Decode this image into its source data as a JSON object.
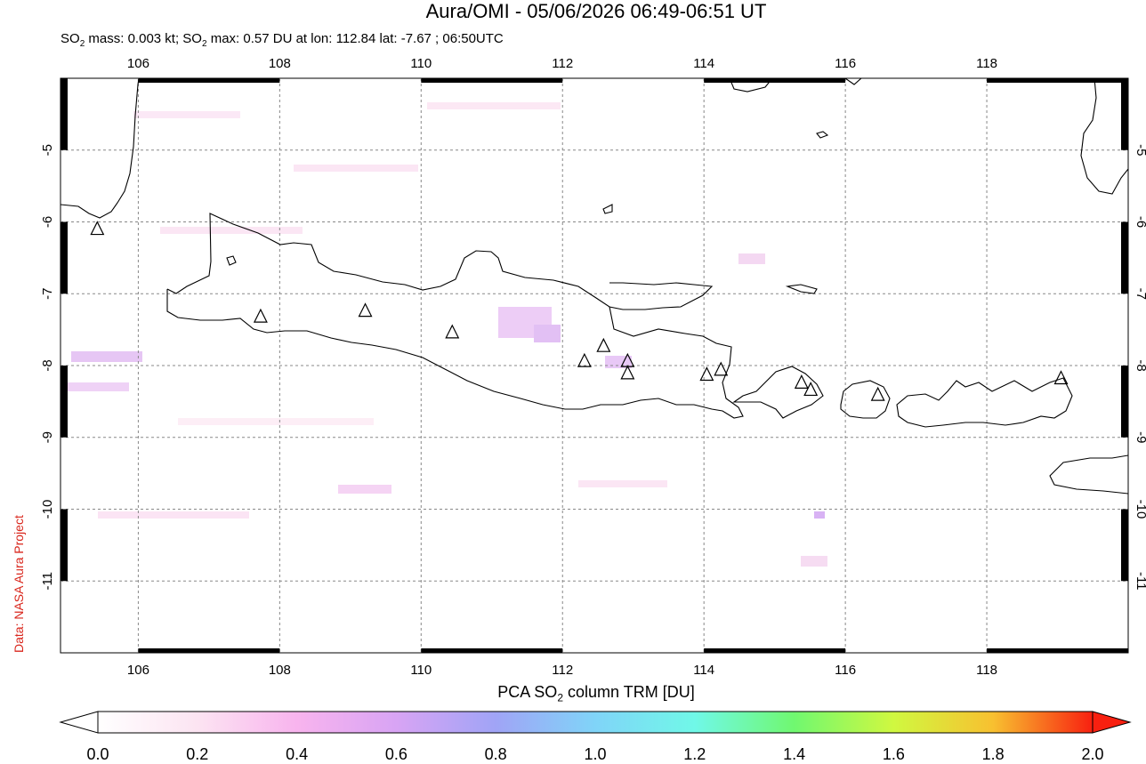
{
  "header": {
    "title": "Aura/OMI - 05/06/2026 06:49-06:51 UT",
    "subtitle_prefix": "SO",
    "subtitle_sub": "2",
    "subtitle_mid": " mass: 0.003 kt; SO",
    "subtitle_sub2": "2",
    "subtitle_suffix": " max: 0.57 DU at lon: 112.84 lat: -7.67 ; 06:50UTC"
  },
  "credit": "Data: NASA Aura Project",
  "map": {
    "lon_range": [
      104.9,
      120.0
    ],
    "lat_range": [
      -12.0,
      -4.0
    ],
    "lon_ticks": [
      "106",
      "108",
      "110",
      "112",
      "114",
      "116",
      "118"
    ],
    "lat_ticks": [
      "-5",
      "-6",
      "-7",
      "-8",
      "-9",
      "-10",
      "-11"
    ],
    "volcanoes": [
      {
        "lon": 105.42,
        "lat": -6.1
      },
      {
        "lon": 107.73,
        "lat": -7.32
      },
      {
        "lon": 109.21,
        "lat": -7.24
      },
      {
        "lon": 110.44,
        "lat": -7.54
      },
      {
        "lon": 112.31,
        "lat": -7.94
      },
      {
        "lon": 112.58,
        "lat": -7.73
      },
      {
        "lon": 112.92,
        "lat": -7.94
      },
      {
        "lon": 112.92,
        "lat": -8.11
      },
      {
        "lon": 114.04,
        "lat": -8.13
      },
      {
        "lon": 114.24,
        "lat": -8.06
      },
      {
        "lon": 115.38,
        "lat": -8.24
      },
      {
        "lon": 115.51,
        "lat": -8.34
      },
      {
        "lon": 116.46,
        "lat": -8.41
      },
      {
        "lon": 119.05,
        "lat": -8.18
      }
    ]
  },
  "colorbar": {
    "title_prefix": "PCA SO",
    "title_sub": "2",
    "title_suffix": " column TRM [DU]",
    "labels": [
      "0.0",
      "0.2",
      "0.4",
      "0.6",
      "0.8",
      "1.0",
      "1.2",
      "1.4",
      "1.6",
      "1.8",
      "2.0"
    ],
    "range": [
      0.0,
      2.0
    ],
    "colors": [
      "#ffffff",
      "#fce4f2",
      "#f8b4ee",
      "#d8a4f4",
      "#a0a4f6",
      "#80d4f8",
      "#70f8e8",
      "#70f870",
      "#d0f840",
      "#f8c030",
      "#f85020",
      "#f82010"
    ]
  }
}
